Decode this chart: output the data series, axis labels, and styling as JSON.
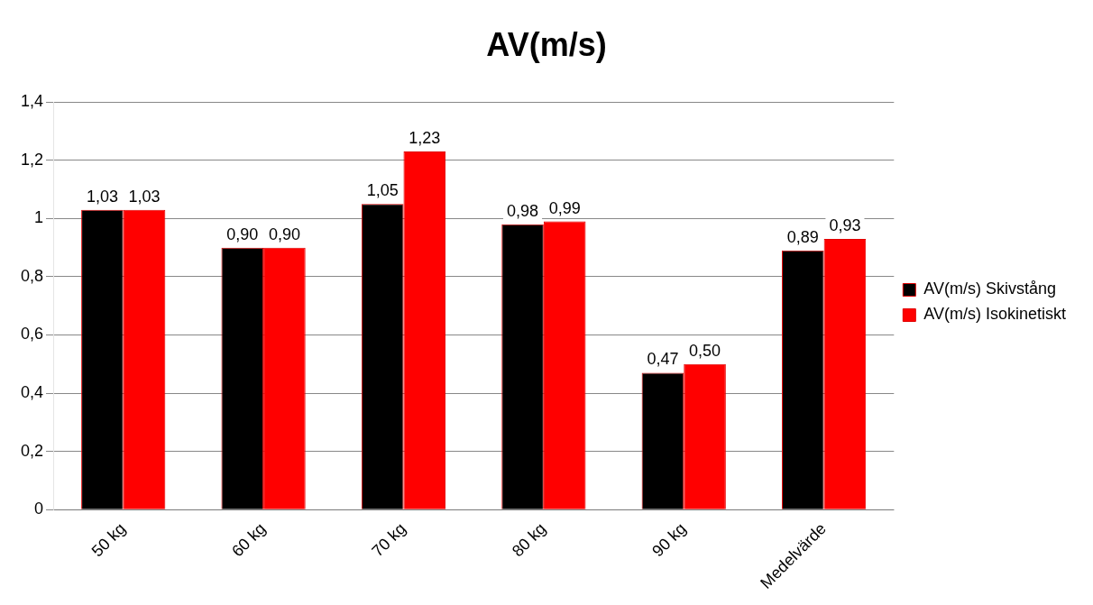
{
  "chart_data": {
    "type": "bar",
    "title": "AV(m/s)",
    "categories": [
      "50 kg",
      "60 kg",
      "70 kg",
      "80 kg",
      "90 kg",
      "Medelvärde"
    ],
    "series": [
      {
        "name": "AV(m/s) Skivstång",
        "color": "#000000",
        "values": [
          1.03,
          0.9,
          1.05,
          0.98,
          0.47,
          0.89
        ],
        "value_labels": [
          "1,03",
          "0,90",
          "1,05",
          "0,98",
          "0,47",
          "0,89"
        ]
      },
      {
        "name": "AV(m/s) Isokinetiskt",
        "color": "#ff0000",
        "values": [
          1.03,
          0.9,
          1.23,
          0.99,
          0.5,
          0.93
        ],
        "value_labels": [
          "1,03",
          "0,90",
          "1,23",
          "0,99",
          "0,50",
          "0,93"
        ]
      }
    ],
    "ylim": [
      0,
      1.4
    ],
    "yticks": [
      0,
      {
        "value": 0.2,
        "label": "0,2"
      },
      {
        "value": 0.4,
        "label": "0,4"
      },
      {
        "value": 0.6,
        "label": "0,6"
      },
      {
        "value": 0.8,
        "label": "0,8"
      },
      1,
      {
        "value": 1.2,
        "label": "1,2"
      },
      {
        "value": 1.4,
        "label": "1,4"
      }
    ],
    "grid": "y",
    "legend": "right"
  }
}
